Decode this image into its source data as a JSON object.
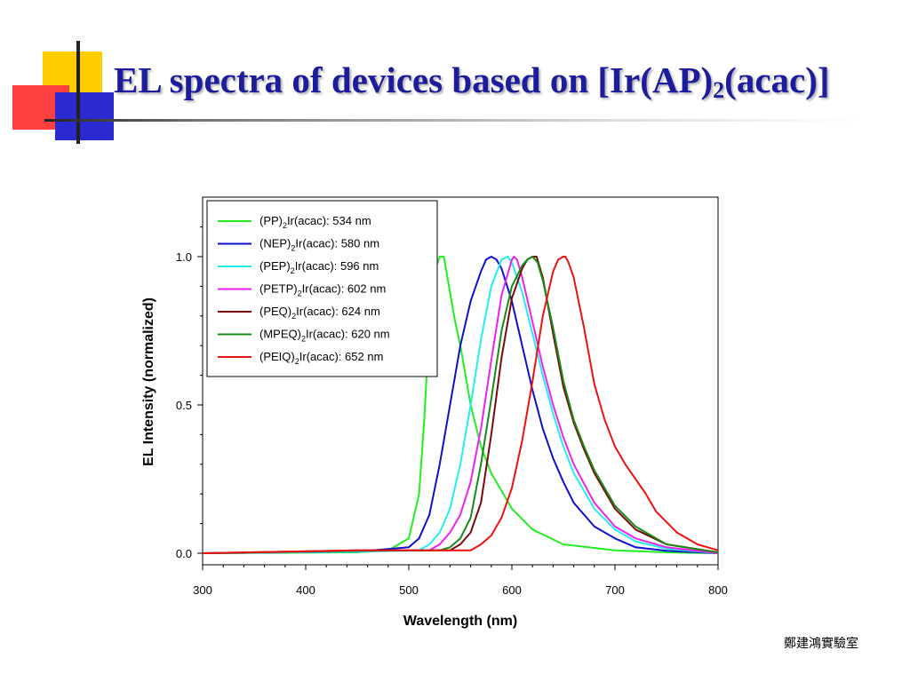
{
  "slide": {
    "title_main": "EL spectra of devices based on [Ir(AP)",
    "title_sub": "2",
    "title_tail": "(acac)]",
    "footer": "鄭建鴻實驗室"
  },
  "chart_data": {
    "type": "line",
    "xlabel": "Wavelength (nm)",
    "ylabel": "EL Intensity (normalized)",
    "xlim": [
      300,
      800
    ],
    "ylim": [
      -0.02,
      1.2
    ],
    "x_ticks": [
      300,
      400,
      500,
      600,
      700,
      800
    ],
    "y_ticks": [
      0.0,
      0.5,
      1.0
    ],
    "x_tick_labels": [
      "300",
      "400",
      "500",
      "600",
      "700",
      "800"
    ],
    "y_tick_labels": [
      "0.0",
      "0.5",
      "1.0"
    ],
    "grid": false,
    "legend_position": "top-left",
    "series": [
      {
        "name": "(PP)2Ir(acac): 534 nm",
        "legend": {
          "a": "(PP)",
          "sub": "2",
          "b": "Ir(acac): 534 nm"
        },
        "color": "#22ee22",
        "x": [
          300,
          450,
          480,
          500,
          510,
          515,
          520,
          525,
          530,
          534,
          540,
          545,
          550,
          555,
          560,
          570,
          580,
          600,
          620,
          650,
          700,
          750,
          800
        ],
        "y": [
          0,
          0.003,
          0.01,
          0.05,
          0.2,
          0.45,
          0.78,
          0.95,
          1.0,
          1.0,
          0.88,
          0.78,
          0.7,
          0.6,
          0.5,
          0.36,
          0.27,
          0.15,
          0.08,
          0.03,
          0.01,
          0.003,
          0
        ]
      },
      {
        "name": "(NEP)2Ir(acac): 580 nm",
        "legend": {
          "a": "(NEP)",
          "sub": "2",
          "b": "Ir(acac): 580 nm"
        },
        "color": "#1010cc",
        "x": [
          300,
          450,
          500,
          510,
          520,
          530,
          540,
          550,
          560,
          570,
          575,
          580,
          585,
          590,
          600,
          610,
          620,
          630,
          640,
          650,
          660,
          680,
          700,
          720,
          750,
          800
        ],
        "y": [
          0,
          0.005,
          0.02,
          0.05,
          0.13,
          0.3,
          0.5,
          0.7,
          0.85,
          0.95,
          0.99,
          1.0,
          0.99,
          0.96,
          0.85,
          0.7,
          0.55,
          0.42,
          0.32,
          0.24,
          0.17,
          0.09,
          0.05,
          0.02,
          0.008,
          0
        ]
      },
      {
        "name": "(PEP)2Ir(acac): 596 nm",
        "legend": {
          "a": "(PEP)",
          "sub": "2",
          "b": "Ir(acac): 596 nm"
        },
        "color": "#22eeee",
        "x": [
          300,
          450,
          510,
          520,
          530,
          540,
          550,
          560,
          570,
          580,
          590,
          596,
          600,
          610,
          620,
          630,
          640,
          650,
          660,
          680,
          700,
          720,
          750,
          800
        ],
        "y": [
          0,
          0.005,
          0.01,
          0.03,
          0.07,
          0.15,
          0.3,
          0.5,
          0.72,
          0.9,
          0.99,
          1.0,
          0.98,
          0.88,
          0.74,
          0.6,
          0.47,
          0.36,
          0.27,
          0.15,
          0.08,
          0.04,
          0.015,
          0
        ]
      },
      {
        "name": "(PETP)2Ir(acac): 602 nm",
        "legend": {
          "a": "(PETP)",
          "sub": "2",
          "b": "Ir(acac): 602 nm"
        },
        "color": "#ee22ee",
        "x": [
          300,
          450,
          520,
          530,
          540,
          550,
          560,
          570,
          580,
          590,
          600,
          602,
          605,
          610,
          620,
          630,
          640,
          650,
          660,
          680,
          700,
          720,
          750,
          800
        ],
        "y": [
          0,
          0.008,
          0.01,
          0.03,
          0.07,
          0.13,
          0.24,
          0.42,
          0.65,
          0.87,
          0.99,
          1.0,
          0.99,
          0.93,
          0.78,
          0.63,
          0.5,
          0.39,
          0.3,
          0.17,
          0.09,
          0.05,
          0.02,
          0
        ]
      },
      {
        "name": "(PEQ)2Ir(acac): 624 nm",
        "legend": {
          "a": "(PEQ)",
          "sub": "2",
          "b": "Ir(acac): 624 nm"
        },
        "color": "#7a0a0a",
        "x": [
          300,
          450,
          540,
          550,
          560,
          570,
          580,
          590,
          600,
          610,
          615,
          620,
          624,
          630,
          640,
          650,
          660,
          670,
          680,
          700,
          720,
          750,
          800
        ],
        "y": [
          0,
          0.01,
          0.01,
          0.03,
          0.07,
          0.17,
          0.4,
          0.66,
          0.86,
          0.96,
          0.99,
          1.0,
          1.0,
          0.93,
          0.74,
          0.56,
          0.44,
          0.35,
          0.27,
          0.15,
          0.08,
          0.03,
          0.003
        ]
      },
      {
        "name": "(MPEQ)2Ir(acac): 620 nm",
        "legend": {
          "a": "(MPEQ)",
          "sub": "2",
          "b": "Ir(acac): 620 nm"
        },
        "color": "#1a8a1a",
        "x": [
          300,
          450,
          530,
          540,
          550,
          560,
          570,
          580,
          590,
          600,
          610,
          615,
          620,
          625,
          630,
          640,
          650,
          660,
          670,
          680,
          700,
          720,
          750,
          800
        ],
        "y": [
          0,
          0.008,
          0.01,
          0.02,
          0.05,
          0.12,
          0.3,
          0.52,
          0.75,
          0.9,
          0.97,
          0.99,
          1.0,
          0.98,
          0.92,
          0.76,
          0.58,
          0.45,
          0.36,
          0.28,
          0.16,
          0.09,
          0.03,
          0.003
        ]
      },
      {
        "name": "(PEIQ)2Ir(acac): 652 nm",
        "legend": {
          "a": "(PEIQ)",
          "sub": "2",
          "b": "Ir(acac): 652 nm"
        },
        "color": "#ee1111",
        "x": [
          300,
          450,
          560,
          570,
          580,
          590,
          600,
          610,
          620,
          630,
          640,
          645,
          650,
          652,
          655,
          660,
          670,
          680,
          690,
          700,
          710,
          720,
          730,
          740,
          760,
          780,
          800
        ],
        "y": [
          0,
          0.01,
          0.01,
          0.03,
          0.06,
          0.12,
          0.22,
          0.38,
          0.58,
          0.8,
          0.95,
          0.99,
          1.0,
          1.0,
          0.98,
          0.93,
          0.76,
          0.57,
          0.45,
          0.36,
          0.3,
          0.25,
          0.2,
          0.14,
          0.07,
          0.03,
          0.01
        ]
      }
    ]
  }
}
